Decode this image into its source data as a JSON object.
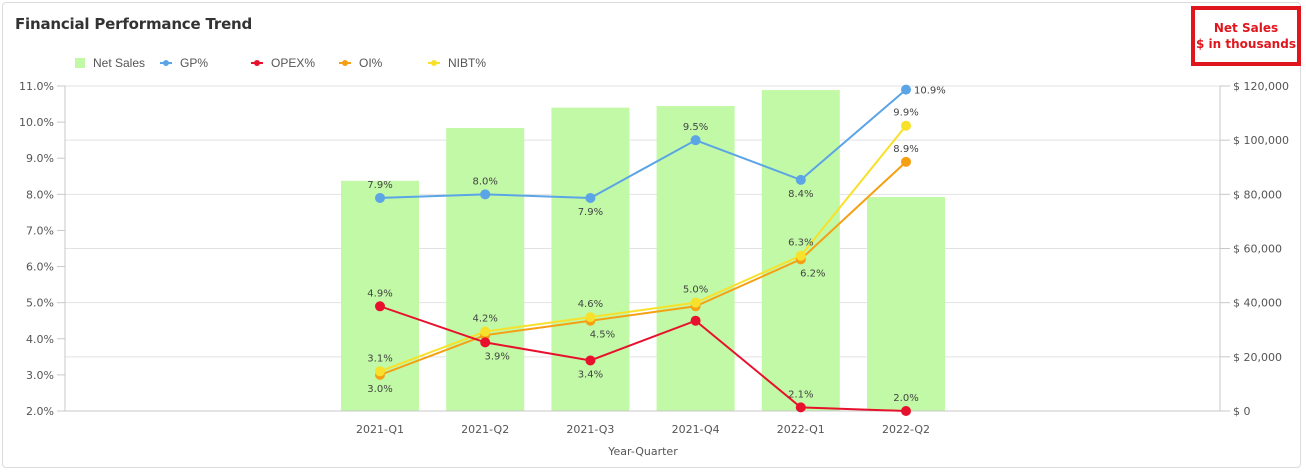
{
  "header": {
    "title": "Financial Performance Trend",
    "note_line1": "Net Sales",
    "note_line2": "$ in thousands",
    "note_color": "#e0161e"
  },
  "legend": [
    {
      "label": "Net Sales",
      "kind": "bar",
      "color": "#c1f9a6"
    },
    {
      "label": "GP%",
      "kind": "line",
      "color": "#5ba4e6"
    },
    {
      "label": "OPEX%",
      "kind": "line",
      "color": "#e8112d"
    },
    {
      "label": "OI%",
      "kind": "line",
      "color": "#f5a012"
    },
    {
      "label": "NIBT%",
      "kind": "line",
      "color": "#f7e12a"
    }
  ],
  "chart_data": {
    "type": "bar+line",
    "title": "Financial Performance Trend",
    "xlabel": "Year-Quarter",
    "ylabel_left": "",
    "ylabel_right": "",
    "categories": [
      "2021-Q1",
      "2021-Q2",
      "2021-Q3",
      "2021-Q4",
      "2022-Q1",
      "2022-Q2"
    ],
    "y_left": {
      "min": 2.0,
      "max": 11.0,
      "ticks": [
        "11.0%",
        "10.0%",
        "9.0%",
        "8.0%",
        "7.0%",
        "6.0%",
        "5.0%",
        "4.0%",
        "3.0%",
        "2.0%"
      ]
    },
    "y_right": {
      "min": 0,
      "max": 120000,
      "ticks": [
        "$ 120,000",
        "$ 100,000",
        "$ 80,000",
        "$ 60,000",
        "$ 40,000",
        "$ 20,000",
        "$ 0"
      ]
    },
    "grid": true,
    "legend_position": "top-left",
    "bars": {
      "name": "Net Sales",
      "axis": "right",
      "color": "#c1f9a6",
      "values": [
        85000,
        104500,
        112000,
        112600,
        118500,
        79000
      ]
    },
    "series": [
      {
        "name": "GP%",
        "axis": "left",
        "color": "#5ba4e6",
        "values": [
          7.9,
          8.0,
          7.9,
          9.5,
          8.4,
          10.9
        ],
        "labels": [
          "7.9%",
          "8.0%",
          "7.9%",
          "9.5%",
          "8.4%",
          "10.9%"
        ],
        "label_pos": [
          "above",
          "above",
          "below",
          "above",
          "below",
          "right"
        ]
      },
      {
        "name": "OPEX%",
        "axis": "left",
        "color": "#e8112d",
        "values": [
          4.9,
          3.9,
          3.4,
          4.5,
          2.1,
          2.0
        ],
        "labels": [
          "4.9%",
          "3.9%",
          "3.4%",
          null,
          "2.1%",
          "2.0%"
        ],
        "label_pos": [
          "above",
          "below",
          "below",
          "none",
          "above",
          "above"
        ]
      },
      {
        "name": "OI%",
        "axis": "left",
        "color": "#f5a012",
        "values": [
          3.0,
          4.1,
          4.5,
          4.9,
          6.2,
          8.9
        ],
        "labels": [
          "3.0%",
          null,
          "4.5%",
          null,
          "6.2%",
          "8.9%"
        ],
        "label_pos": [
          "below",
          "none",
          "below",
          "none",
          "below",
          "above"
        ]
      },
      {
        "name": "NIBT%",
        "axis": "left",
        "color": "#f7e12a",
        "values": [
          3.1,
          4.2,
          4.6,
          5.0,
          6.3,
          9.9
        ],
        "labels": [
          "3.1%",
          "4.2%",
          "4.6%",
          "5.0%",
          "6.3%",
          "9.9%"
        ],
        "label_pos": [
          "above",
          "above",
          "above",
          "above",
          "above",
          "above"
        ]
      }
    ]
  }
}
